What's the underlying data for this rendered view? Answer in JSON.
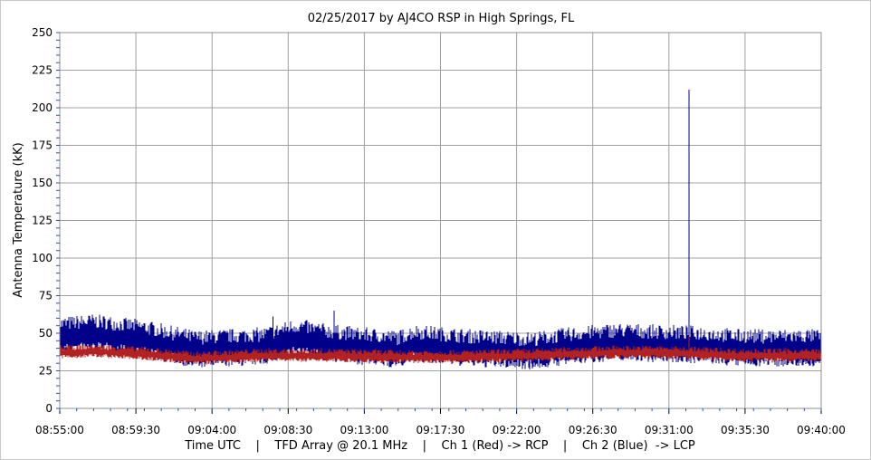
{
  "chart_data": {
    "type": "line",
    "title": "02/25/2017  by  AJ4CO RSP  in  High Springs, FL",
    "ylabel": "Antenna Temperature (kK)",
    "xlabel": "Time UTC    |    TFD Array @ 20.1 MHz    |    Ch 1 (Red) -> RCP    |    Ch 2 (Blue)  -> LCP",
    "ylim": [
      0,
      250
    ],
    "yticks": [
      "0",
      "25",
      "50",
      "75",
      "100",
      "125",
      "150",
      "175",
      "200",
      "225",
      "250"
    ],
    "xlim": [
      "08:55:00",
      "09:40:00"
    ],
    "xticks": [
      "08:55:00",
      "08:59:30",
      "09:04:00",
      "09:08:30",
      "09:13:00",
      "09:17:30",
      "09:22:00",
      "09:26:30",
      "09:31:00",
      "09:35:30",
      "09:40:00"
    ],
    "grid": true,
    "series": [
      {
        "name": "Ch 2 (Blue)",
        "color": "#00008b",
        "base": [
          [
            0,
            47
          ],
          [
            2,
            49
          ],
          [
            5,
            45
          ],
          [
            8,
            38
          ],
          [
            12,
            40
          ],
          [
            14,
            46
          ],
          [
            16,
            42
          ],
          [
            20,
            38
          ],
          [
            21,
            42
          ],
          [
            24,
            39
          ],
          [
            28,
            37
          ],
          [
            30,
            40
          ],
          [
            33,
            43
          ],
          [
            35,
            42
          ],
          [
            38,
            41
          ],
          [
            40,
            39
          ]
        ],
        "spread": 14,
        "spikes": [
          [
            12.6,
            61
          ],
          [
            16.2,
            65
          ],
          [
            37.2,
            212
          ]
        ]
      },
      {
        "name": "Ch 1 (Red)",
        "color": "#b22222",
        "base": [
          [
            0,
            37
          ],
          [
            2,
            38
          ],
          [
            5,
            36
          ],
          [
            8,
            33
          ],
          [
            12,
            35
          ],
          [
            16,
            35
          ],
          [
            20,
            34
          ],
          [
            24,
            34
          ],
          [
            28,
            35
          ],
          [
            30,
            36
          ],
          [
            33,
            37
          ],
          [
            35,
            37
          ],
          [
            38,
            36
          ],
          [
            40,
            35
          ]
        ],
        "spread": 5,
        "spikes": [
          [
            37.2,
            48
          ]
        ]
      }
    ]
  },
  "colors": {
    "grid": "#a0a0a0",
    "frame": "#909090",
    "minor_tick": "#2050c0"
  }
}
